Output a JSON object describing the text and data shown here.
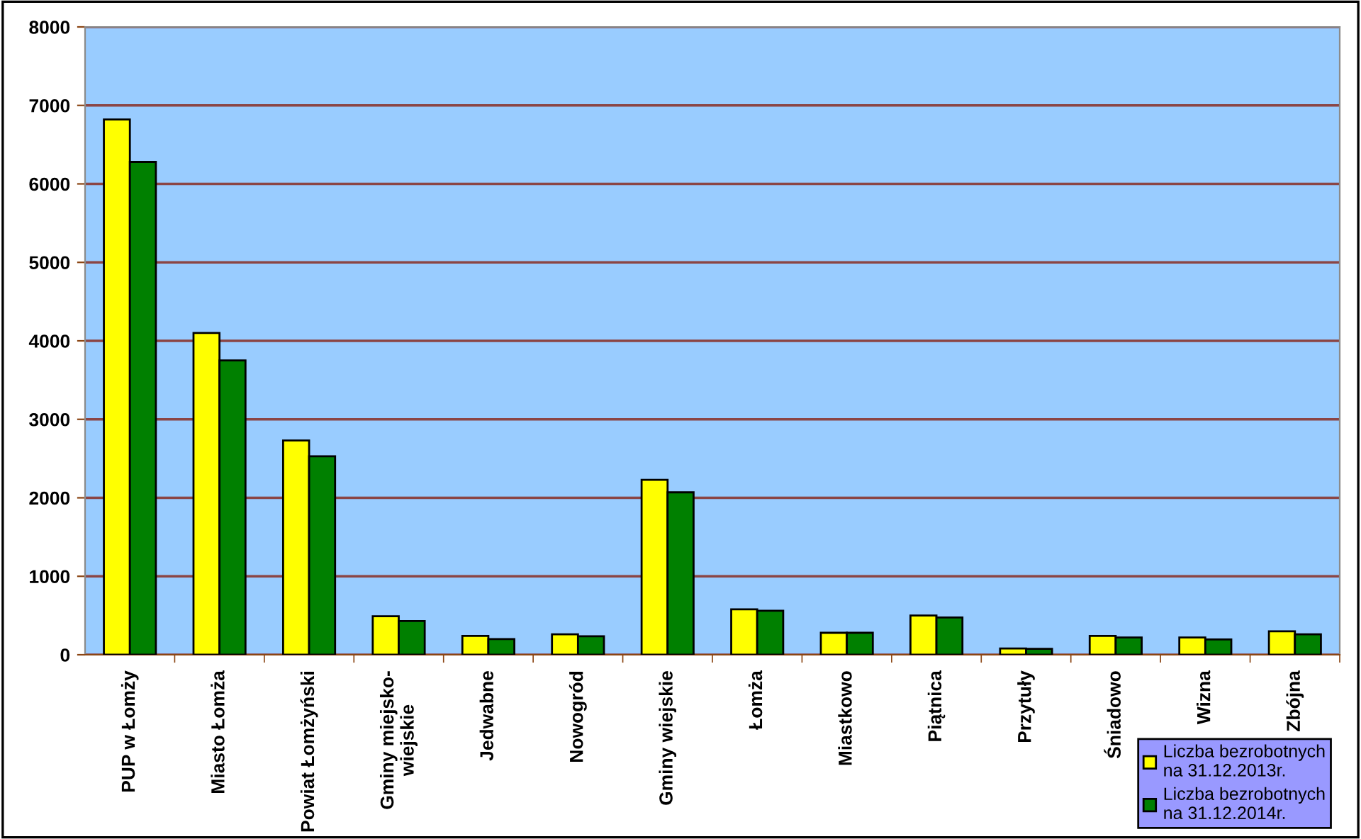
{
  "chart_data": {
    "type": "bar",
    "categories": [
      "PUP w Łomży",
      "Miasto Łomża",
      "Powiat Łomżyński",
      "Gminy miejsko-\nwiejskie",
      "Jedwabne",
      "Nowogród",
      "Gminy wiejskie",
      "Łomża",
      "Miastkowo",
      "Piątnica",
      "Przytuły",
      "Śniadowo",
      "Wizna",
      "Zbójna"
    ],
    "series": [
      {
        "name": "Liczba bezrobotnych\nna 31.12.2013r.",
        "color": "#ffff00",
        "values": [
          6820,
          4100,
          2730,
          490,
          240,
          260,
          2230,
          580,
          280,
          500,
          80,
          240,
          220,
          300
        ]
      },
      {
        "name": "Liczba bezrobotnych\nna 31.12.2014r.",
        "color": "#008000",
        "values": [
          6280,
          3750,
          2530,
          430,
          200,
          235,
          2070,
          560,
          280,
          475,
          75,
          220,
          195,
          260
        ]
      }
    ],
    "ylim": [
      0,
      8000
    ],
    "yticks": [
      0,
      1000,
      2000,
      3000,
      4000,
      5000,
      6000,
      7000,
      8000
    ],
    "grid": "y",
    "legend": "bottom right"
  }
}
